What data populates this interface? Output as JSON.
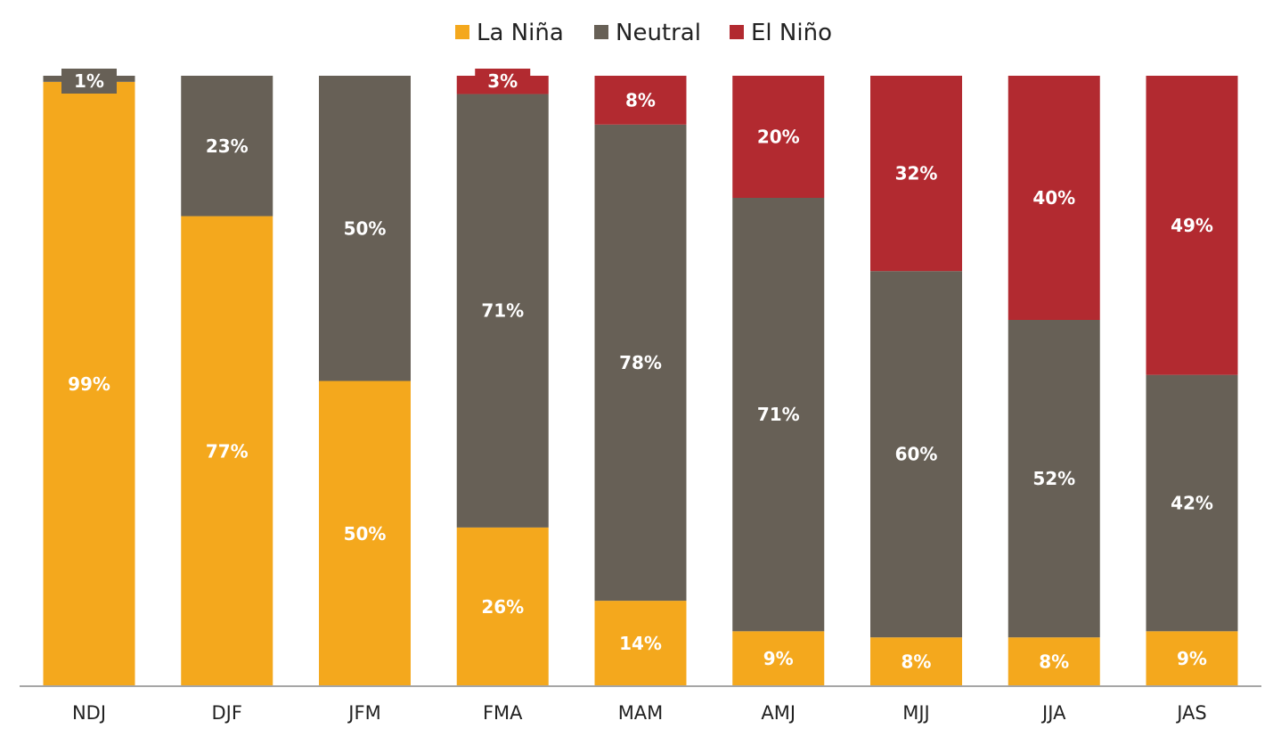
{
  "chart_data": {
    "type": "bar",
    "stacked": true,
    "normalized": true,
    "categories": [
      "NDJ",
      "DJF",
      "JFM",
      "FMA",
      "MAM",
      "AMJ",
      "MJJ",
      "JJA",
      "JAS"
    ],
    "series": [
      {
        "name": "La Niña",
        "color": "#F4A81D",
        "values": [
          99,
          77,
          50,
          26,
          14,
          9,
          8,
          8,
          9
        ]
      },
      {
        "name": "Neutral",
        "color": "#676056",
        "values": [
          1,
          23,
          50,
          71,
          78,
          71,
          60,
          52,
          42
        ]
      },
      {
        "name": "El Niño",
        "color": "#B22A30",
        "values": [
          0,
          0,
          0,
          3,
          8,
          20,
          32,
          40,
          49
        ]
      }
    ],
    "data_labels": [
      [
        "99%",
        "77%",
        "50%",
        "26%",
        "14%",
        "9%",
        "8%",
        "8%",
        "9%"
      ],
      [
        "1%",
        "23%",
        "50%",
        "71%",
        "78%",
        "71%",
        "60%",
        "52%",
        "42%"
      ],
      [
        "",
        "",
        "",
        "3%",
        "8%",
        "20%",
        "32%",
        "40%",
        "49%"
      ]
    ],
    "ylim": [
      0,
      100
    ],
    "legend_position": "top",
    "grid": false,
    "title": "",
    "xlabel": "",
    "ylabel": ""
  }
}
